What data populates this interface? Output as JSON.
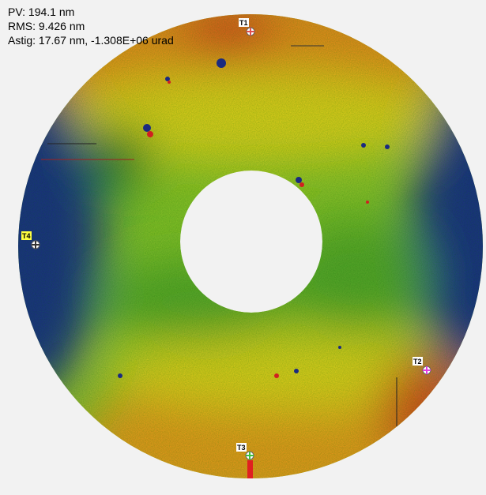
{
  "readout": {
    "pv": "PV: 194.1 nm",
    "rms": "RMS: 9.426 nm",
    "astig": "Astig: 17.67 nm, -1.308E+06 urad"
  },
  "markers": [
    {
      "label": "T1"
    },
    {
      "label": "T2"
    },
    {
      "label": "T3"
    },
    {
      "label": "T4"
    }
  ]
}
